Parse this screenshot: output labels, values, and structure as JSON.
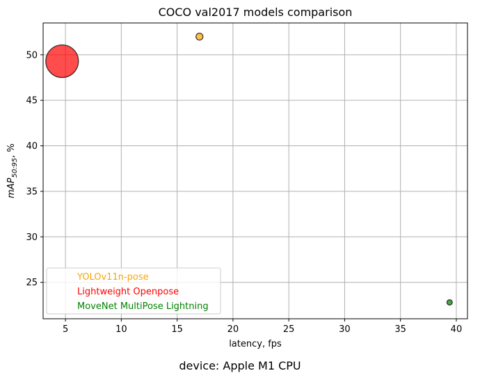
{
  "chart_data": {
    "type": "scatter",
    "title": "COCO val2017 models comparison",
    "xlabel": "latency, fps",
    "ylabel": {
      "main": "mAP",
      "sub": "50:95",
      "suffix": ", %"
    },
    "xlim": [
      3,
      41
    ],
    "ylim": [
      21,
      53.5
    ],
    "xticks": [
      5,
      10,
      15,
      20,
      25,
      30,
      35,
      40
    ],
    "yticks": [
      25,
      30,
      35,
      40,
      45,
      50
    ],
    "grid": true,
    "legend_placement": "lower-left",
    "series": [
      {
        "name": "YOLOv11n-pose",
        "color": "#FFA500",
        "x": 17.0,
        "y": 52.0,
        "size": 1
      },
      {
        "name": "Lightweight Openpose",
        "color": "#FF0000",
        "x": 4.7,
        "y": 49.3,
        "size": 22
      },
      {
        "name": "MoveNet MultiPose Lightning",
        "color": "#008000",
        "x": 39.4,
        "y": 22.8,
        "size": 0.6
      }
    ],
    "footer": "device: Apple M1 CPU"
  }
}
